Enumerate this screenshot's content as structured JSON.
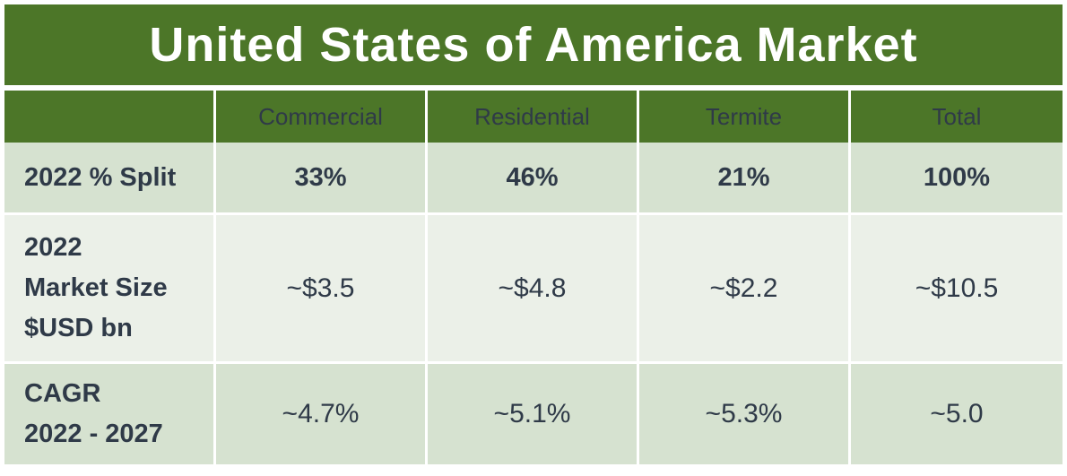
{
  "title": "United States of America Market",
  "colors": {
    "header_green": "#4c7628",
    "row_dark": "#d6e2d0",
    "row_light": "#ebf0e8",
    "text": "#2f3a48"
  },
  "chart_data": {
    "type": "table",
    "title": "United States of America Market",
    "columns": [
      "",
      "Commercial",
      "Residential",
      "Termite",
      "Total"
    ],
    "rows": [
      {
        "label_lines": [
          "2022 % Split"
        ],
        "values": [
          "33%",
          "46%",
          "21%",
          "100%"
        ]
      },
      {
        "label_lines": [
          "2022",
          "Market Size",
          "$USD bn"
        ],
        "values": [
          "~$3.5",
          "~$4.8",
          "~$2.2",
          "~$10.5"
        ]
      },
      {
        "label_lines": [
          "CAGR",
          "2022 - 2027"
        ],
        "values": [
          "~4.7%",
          "~5.1%",
          "~5.3%",
          "~5.0"
        ]
      }
    ]
  }
}
